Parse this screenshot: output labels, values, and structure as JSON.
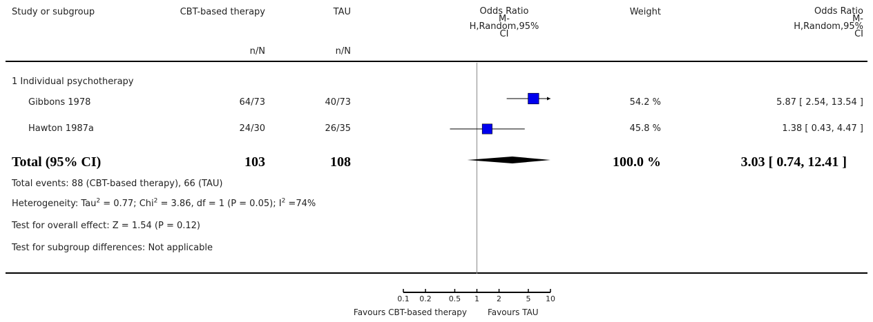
{
  "header": {
    "study": "Study or subgroup",
    "exp": "CBT-based therapy",
    "ctrl": "TAU",
    "or_plot": [
      "Odds Ratio",
      "M-",
      "H,Random,95%",
      "CI"
    ],
    "weight": "Weight",
    "or_text": [
      "Odds Ratio",
      "M-",
      "H,Random,95%",
      "CI"
    ],
    "exp_unit": "n/N",
    "ctrl_unit": "n/N"
  },
  "subgroup": "1 Individual psychotherapy",
  "studies": [
    {
      "name": "Gibbons 1978",
      "exp": "64/73",
      "ctrl": "40/73",
      "weight": "54.2 %",
      "ci_text": "5.87 [ 2.54, 13.54 ]"
    },
    {
      "name": "Hawton 1987a",
      "exp": "24/30",
      "ctrl": "26/35",
      "weight": "45.8 %",
      "ci_text": "1.38 [ 0.43, 4.47 ]"
    }
  ],
  "total": {
    "label": "Total (95% CI)",
    "exp": "103",
    "ctrl": "108",
    "weight": "100.0 %",
    "ci_text": "3.03 [ 0.74, 12.41 ]"
  },
  "notes": {
    "events": "Total events: 88 (CBT-based therapy), 66 (TAU)",
    "het_a": "Heterogeneity: Tau",
    "het_b": " = 0.77; Chi",
    "het_c": " = 3.86, df = 1 (P = 0.05); I",
    "het_d": " =74%",
    "sup2": "2",
    "overall": "Test for overall effect: Z = 1.54 (P = 0.12)",
    "subgroup_diff": "Test for subgroup differences: Not applicable"
  },
  "axis": {
    "favours_left": "Favours CBT-based therapy",
    "favours_right": "Favours TAU"
  },
  "colors": {
    "marker": "#0000ee",
    "line": "#000000",
    "null_line": "#888888"
  },
  "chart_data": {
    "type": "forest",
    "scale": "log",
    "xlim": [
      0.1,
      10
    ],
    "ticks": [
      0.1,
      0.2,
      0.5,
      1,
      2,
      5,
      10
    ],
    "tick_labels": [
      "0.1",
      "0.2",
      "0.5",
      "1",
      "2",
      "5",
      "10"
    ],
    "null_value": 1,
    "studies": [
      {
        "name": "Gibbons 1978",
        "or": 5.87,
        "lo": 2.54,
        "hi": 13.54,
        "weight": 54.2
      },
      {
        "name": "Hawton 1987a",
        "or": 1.38,
        "lo": 0.43,
        "hi": 4.47,
        "weight": 45.8
      }
    ],
    "pooled": {
      "or": 3.03,
      "lo": 0.74,
      "hi": 12.41
    }
  }
}
